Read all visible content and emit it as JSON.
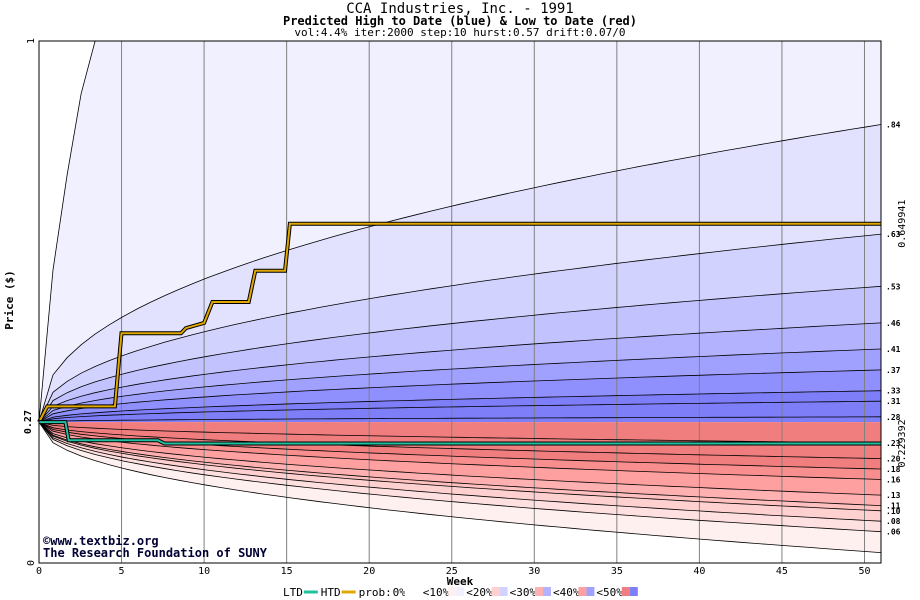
{
  "chart_data": {
    "type": "area",
    "title": "CCA Industries, Inc. - 1991",
    "subtitle": "Predicted High to Date (blue) &  Low to Date (red)",
    "params": "vol:4.4% iter:2000 step:10 hurst:0.57 drift:0.07/0",
    "xlabel": "Week",
    "ylabel": "Price ($)",
    "xlim": [
      0,
      51
    ],
    "ylim": [
      0,
      1
    ],
    "x_ticks": [
      "0",
      "5",
      "10",
      "15",
      "20",
      "25",
      "30",
      "35",
      "40",
      "45",
      "50"
    ],
    "y_ticks": [
      "0",
      "1"
    ],
    "start_price": 0.27,
    "start_price_label": "0.27",
    "grid": true,
    "high_bands": [
      0.84,
      0.63,
      0.53,
      0.46,
      0.41,
      0.37,
      0.33,
      0.31,
      0.28
    ],
    "high_band_labels": [
      ".84",
      ".63",
      ".53",
      ".46",
      ".41",
      ".37",
      ".33",
      ".31",
      ".28"
    ],
    "low_bands": [
      0.23,
      0.2,
      0.18,
      0.16,
      0.13,
      0.11,
      0.1,
      0.08,
      0.06
    ],
    "low_band_labels": [
      ".23",
      ".20",
      ".18",
      ".16",
      ".13",
      ".11",
      ".10",
      ".08",
      ".06"
    ],
    "htd": {
      "name": "HTD",
      "value_label": "0.649941",
      "color": "#e0a800",
      "points": [
        [
          0,
          0.27
        ],
        [
          0.5,
          0.3
        ],
        [
          4.6,
          0.3
        ],
        [
          5,
          0.44
        ],
        [
          8.6,
          0.44
        ],
        [
          8.9,
          0.45
        ],
        [
          10,
          0.46
        ],
        [
          10.5,
          0.5
        ],
        [
          12.7,
          0.5
        ],
        [
          13.1,
          0.56
        ],
        [
          14.9,
          0.56
        ],
        [
          15.2,
          0.65
        ],
        [
          51,
          0.65
        ]
      ]
    },
    "ltd": {
      "name": "LTD",
      "value_label": "0.229392",
      "color": "#20c0a0",
      "points": [
        [
          0,
          0.27
        ],
        [
          1.6,
          0.27
        ],
        [
          1.8,
          0.235
        ],
        [
          7.2,
          0.235
        ],
        [
          7.6,
          0.229
        ],
        [
          51,
          0.229
        ]
      ]
    },
    "legend": {
      "ltd": "LTD",
      "htd": "HTD",
      "prob_prefix": "prob:",
      "items": [
        "0%",
        "<10%",
        "<20%",
        "<30%",
        "<40%",
        "<50%"
      ]
    },
    "colors": {
      "blue_bands": [
        "#f0f0ff",
        "#e2e2ff",
        "#d2d2ff",
        "#c2c2ff",
        "#b2b2ff",
        "#a0a0ff",
        "#8f8ffd",
        "#7e7ef8"
      ],
      "red_bands": [
        "#fff0f0",
        "#ffe0e0",
        "#ffd0d0",
        "#ffc0c0",
        "#ffb0b0",
        "#ffa0a0",
        "#f88e8e",
        "#f07e7e"
      ]
    }
  },
  "credits": {
    "site": "www.textbiz.org",
    "org": "The Research Foundation of SUNY"
  }
}
